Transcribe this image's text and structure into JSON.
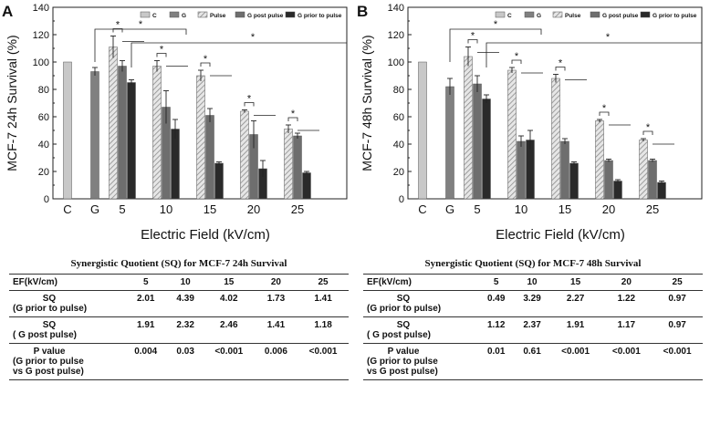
{
  "chart_data": [
    {
      "type": "bar",
      "panel_letter": "A",
      "title": "",
      "xlabel": "Electric Field (kV/cm)",
      "ylabel": "MCF-7 24h Survival (%)",
      "ylim": [
        0,
        140
      ],
      "yticks": [
        "0",
        "20",
        "40",
        "60",
        "80",
        "100",
        "120",
        "140"
      ],
      "legend": [
        "C",
        "G",
        "Pulse",
        "G post pulse",
        "G prior to pulse"
      ],
      "legend_position": "top-right",
      "control": [
        {
          "label": "C",
          "value": 100
        },
        {
          "label": "G",
          "value": 93,
          "error": 3
        }
      ],
      "categories": [
        "5",
        "10",
        "15",
        "20",
        "25"
      ],
      "series": [
        {
          "name": "Pulse",
          "values": [
            111,
            97,
            90,
            64,
            51
          ],
          "errors": [
            8,
            4,
            4,
            1,
            3
          ]
        },
        {
          "name": "G post pulse",
          "values": [
            97,
            67,
            61,
            47,
            46
          ],
          "errors": [
            4,
            12,
            5,
            10,
            2
          ]
        },
        {
          "name": "G prior to pulse",
          "values": [
            85,
            51,
            26,
            22,
            19
          ],
          "errors": [
            2,
            7,
            1,
            6,
            1
          ]
        }
      ],
      "significance_marker": "*"
    },
    {
      "type": "bar",
      "panel_letter": "B",
      "title": "",
      "xlabel": "Electric Field (kV/cm)",
      "ylabel": "MCF-7 48h Survival (%)",
      "ylim": [
        0,
        140
      ],
      "yticks": [
        "0",
        "20",
        "40",
        "60",
        "80",
        "100",
        "120",
        "140"
      ],
      "legend": [
        "C",
        "G",
        "Pulse",
        "G post pulse",
        "G prior to pulse"
      ],
      "legend_position": "top-right",
      "control": [
        {
          "label": "C",
          "value": 100
        },
        {
          "label": "G",
          "value": 82,
          "error": 6
        }
      ],
      "categories": [
        "5",
        "10",
        "15",
        "20",
        "25"
      ],
      "series": [
        {
          "name": "Pulse",
          "values": [
            104,
            94,
            88,
            57,
            43
          ],
          "errors": [
            7,
            2,
            3,
            1,
            1
          ]
        },
        {
          "name": "G post pulse",
          "values": [
            84,
            42,
            42,
            28,
            28
          ],
          "errors": [
            6,
            4,
            2,
            1,
            1
          ]
        },
        {
          "name": "G prior to pulse",
          "values": [
            73,
            43,
            26,
            13,
            12
          ],
          "errors": [
            3,
            7,
            1,
            1,
            1
          ]
        }
      ],
      "significance_marker": "*"
    }
  ],
  "colors": {
    "C": "#c8c8c8",
    "G": "#808080",
    "Pulse": "#bdbdbd",
    "G post pulse": "#6e6e6e",
    "G prior to pulse": "#2a2a2a",
    "axis": "#222222"
  },
  "tables": [
    {
      "title": "Synergistic Quotient (SQ) for MCF-7  24h Survival",
      "header_label": "EF(kV/cm)",
      "columns": [
        "5",
        "10",
        "15",
        "20",
        "25"
      ],
      "rows": [
        {
          "main": "SQ",
          "sub": [
            "(G prior to pulse)"
          ],
          "values": [
            "2.01",
            "4.39",
            "4.02",
            "1.73",
            "1.41"
          ]
        },
        {
          "main": "SQ",
          "sub": [
            "( G post pulse)"
          ],
          "values": [
            "1.91",
            "2.32",
            "2.46",
            "1.41",
            "1.18"
          ]
        },
        {
          "main": "P value",
          "sub": [
            "(G prior to pulse",
            "vs G post pulse)"
          ],
          "values": [
            "0.004",
            "0.03",
            "<0.001",
            "0.006",
            "<0.001"
          ]
        }
      ]
    },
    {
      "title": "Synergistic Quotient (SQ) for MCF-7 48h Survival",
      "header_label": "EF(kV/cm)",
      "columns": [
        "5",
        "10",
        "15",
        "20",
        "25"
      ],
      "rows": [
        {
          "main": "SQ",
          "sub": [
            "(G prior to pulse)"
          ],
          "values": [
            "0.49",
            "3.29",
            "2.27",
            "1.22",
            "0.97"
          ]
        },
        {
          "main": "SQ",
          "sub": [
            "( G post pulse)"
          ],
          "values": [
            "1.12",
            "2.37",
            "1.91",
            "1.17",
            "0.97"
          ]
        },
        {
          "main": "P value",
          "sub": [
            "(G prior to pulse",
            "vs G post pulse)"
          ],
          "values": [
            "0.01",
            "0.61",
            "<0.001",
            "<0.001",
            "<0.001"
          ]
        }
      ]
    }
  ]
}
